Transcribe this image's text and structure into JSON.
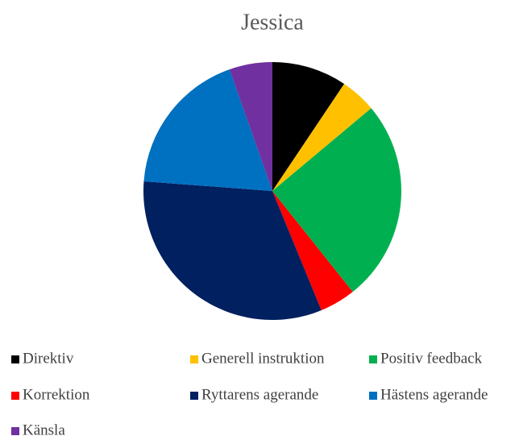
{
  "chart_data": {
    "type": "pie",
    "title": "Jessica",
    "categories": [
      "Direktiv",
      "Generell instruktion",
      "Positiv feedback",
      "Korrektion",
      "Ryttarens agerande",
      "Hästens agerande",
      "Känsla"
    ],
    "values": [
      9.4,
      4.5,
      25.4,
      4.5,
      32.4,
      18.4,
      5.4
    ],
    "colors": [
      "#000000",
      "#ffc000",
      "#00b050",
      "#ff0000",
      "#002060",
      "#0070c0",
      "#7030a0"
    ],
    "legend": "bottom"
  }
}
